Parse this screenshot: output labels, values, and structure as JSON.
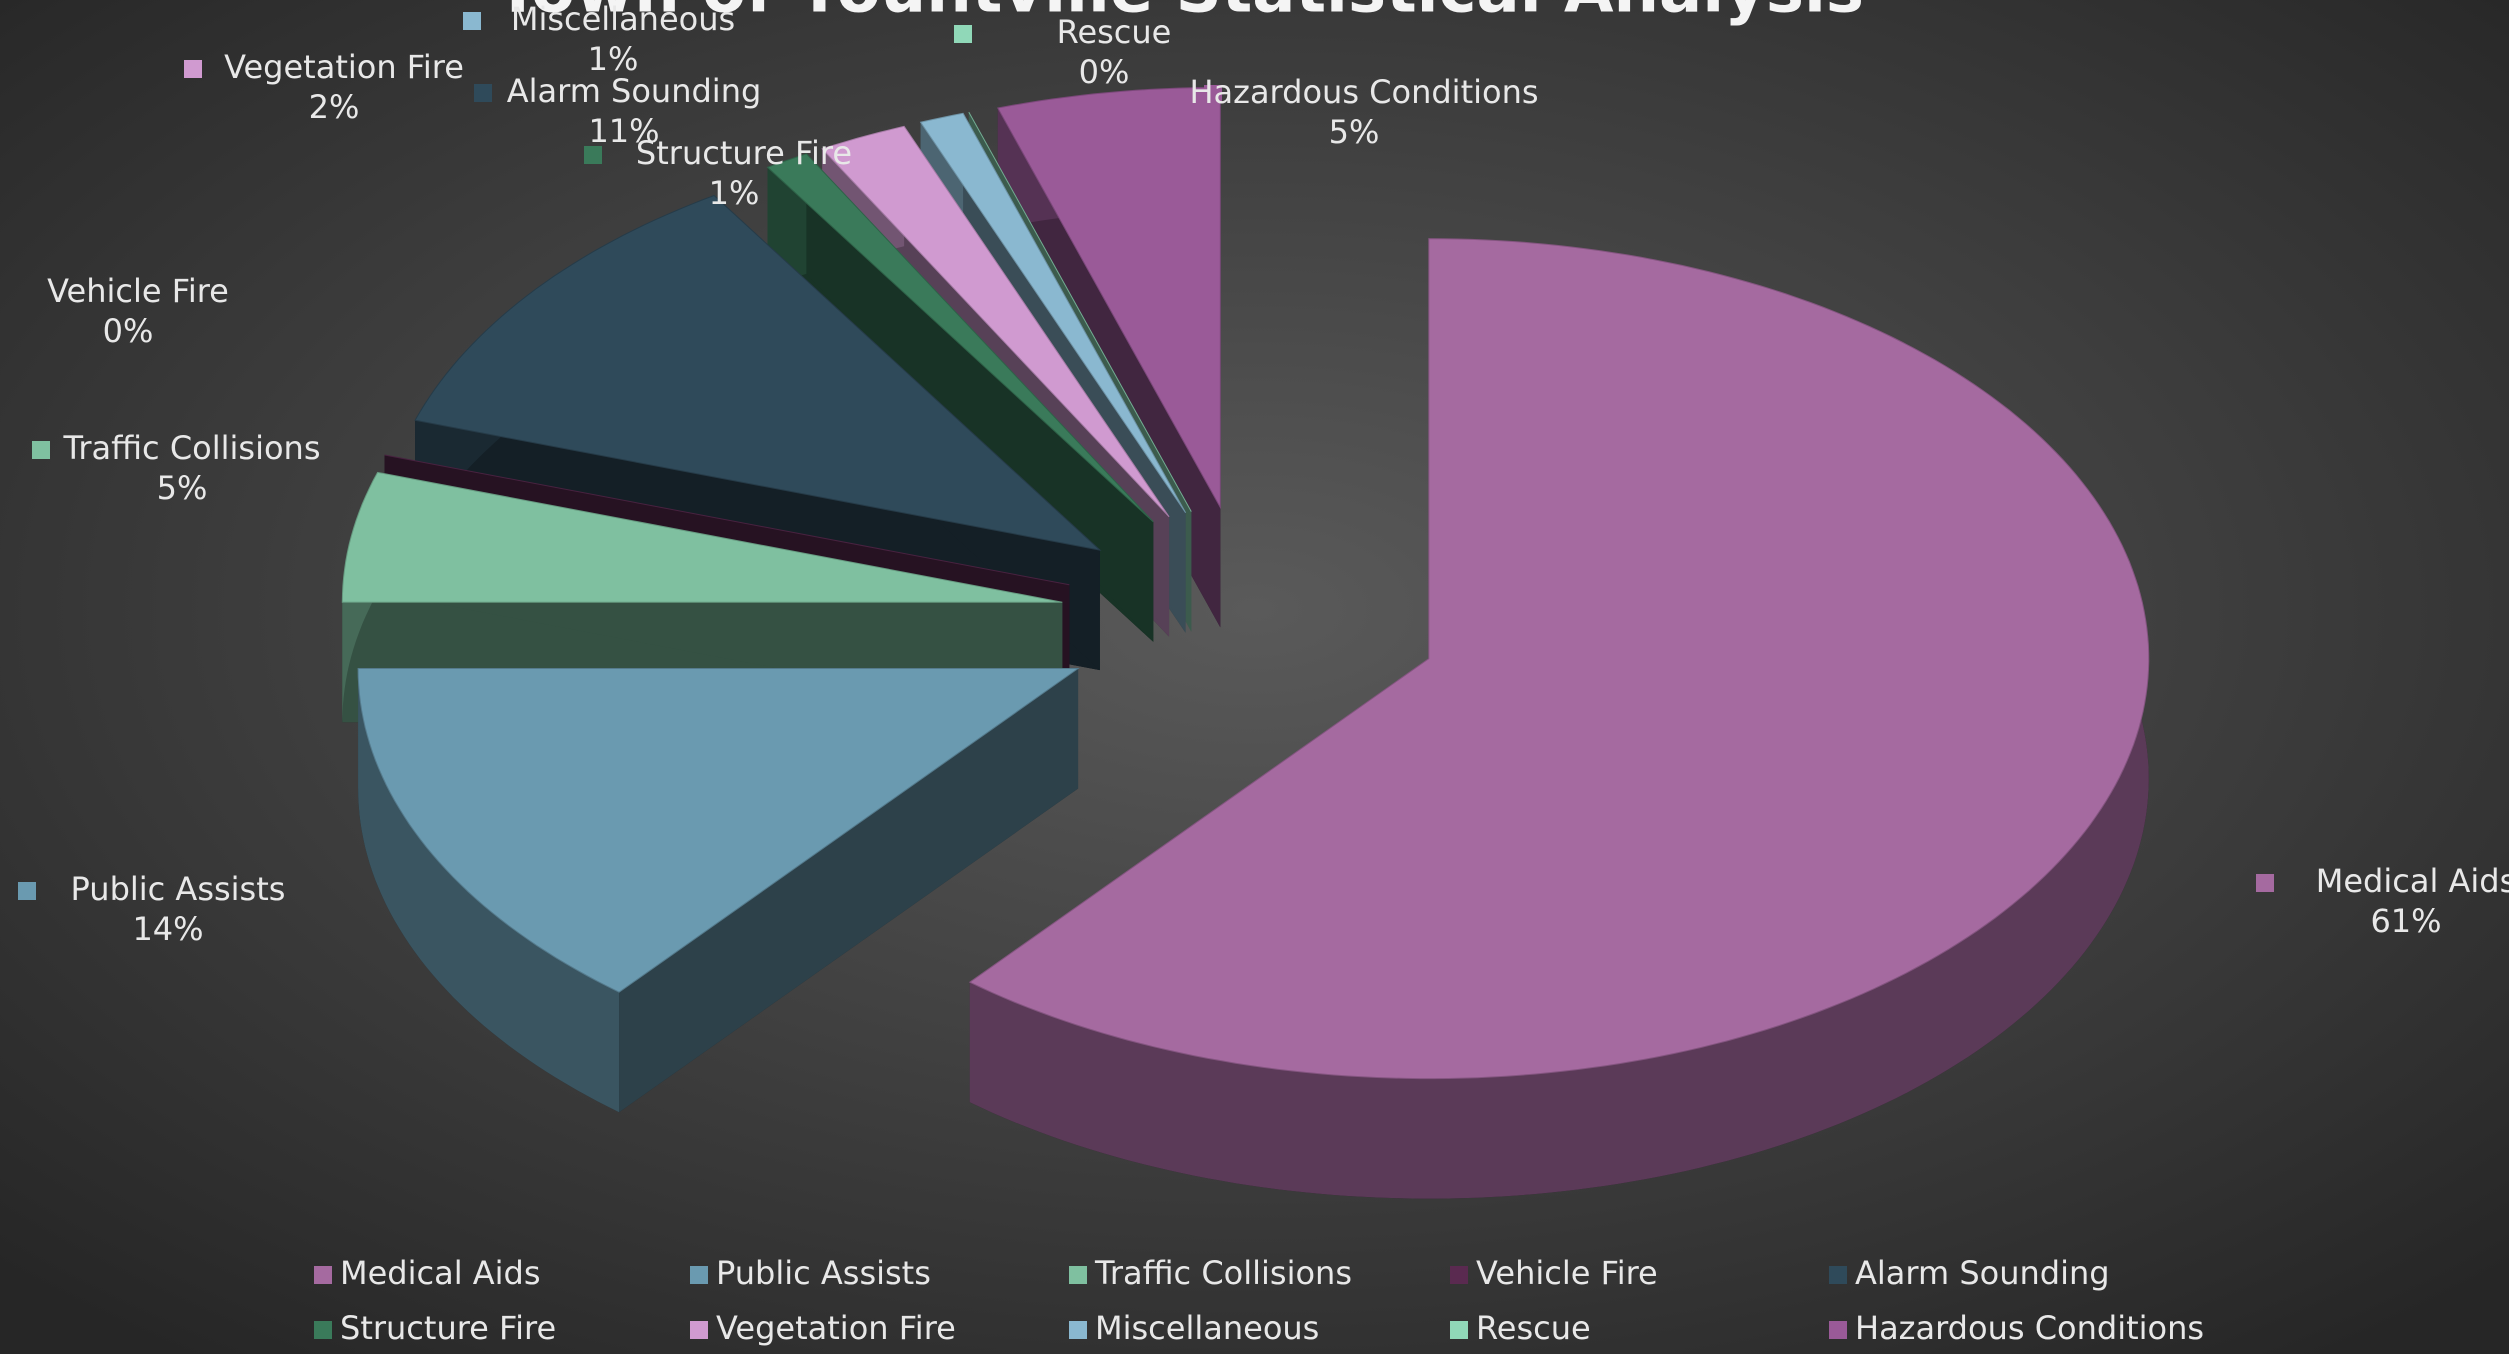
{
  "chart_data": {
    "type": "pie",
    "title": "Town of Yountville Statistical Analysis",
    "categories": [
      "Medical Aids",
      "Public Assists",
      "Traffic Collisions",
      "Vehicle Fire",
      "Alarm Sounding",
      "Structure Fire",
      "Vegetation Fire",
      "Miscellaneous",
      "Rescue",
      "Hazardous Conditions"
    ],
    "values": [
      61,
      14,
      5,
      0,
      11,
      1,
      2,
      1,
      0,
      5
    ],
    "value_labels": [
      "61%",
      "14%",
      "5%",
      "0%",
      "11%",
      "1%",
      "2%",
      "1%",
      "0%",
      "5%"
    ],
    "colors": [
      "#a56aa0",
      "#6a9ab0",
      "#7fc0a0",
      "#5a2a50",
      "#2f4a5a",
      "#3a7a5a",
      "#d09ad0",
      "#8ab8d0",
      "#90d8b8",
      "#9a5a98"
    ],
    "legend": "bottom"
  }
}
